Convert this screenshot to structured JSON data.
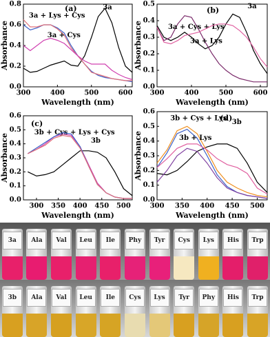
{
  "chart_data": [
    {
      "type": "line",
      "panel": "(a)",
      "x_label": "Wavelength (nm)",
      "y_label": "Absorbance",
      "x": [
        300,
        320,
        340,
        360,
        380,
        400,
        420,
        440,
        460,
        480,
        500,
        520,
        540,
        560,
        580,
        600,
        620
      ],
      "xlim": [
        300,
        620
      ],
      "xticks": [
        300,
        400,
        500,
        600
      ],
      "ylim": [
        0,
        0.8
      ],
      "yticks": [
        {
          "value": 0,
          "label": "0.0"
        },
        0.2,
        0.4,
        0.6,
        0.8
      ],
      "series": [
        {
          "name": "3a",
          "color": "#000000",
          "values": [
            0.18,
            0.14,
            0.15,
            0.18,
            0.21,
            0.23,
            0.25,
            0.21,
            0.2,
            0.3,
            0.48,
            0.68,
            0.76,
            0.62,
            0.38,
            0.2,
            0.14
          ]
        },
        {
          "color": "#3b5fc8",
          "values": [
            0.6,
            0.55,
            0.57,
            0.6,
            0.6,
            0.57,
            0.52,
            0.4,
            0.3,
            0.22,
            0.15,
            0.11,
            0.09,
            0.08,
            0.07,
            0.06,
            0.05
          ]
        },
        {
          "name": "3a + Lys + Cys",
          "color": "#e0707a",
          "values": [
            0.65,
            0.58,
            0.58,
            0.6,
            0.6,
            0.56,
            0.5,
            0.38,
            0.3,
            0.22,
            0.14,
            0.12,
            0.1,
            0.08,
            0.07,
            0.06,
            0.06
          ]
        },
        {
          "name": "3a + Cys",
          "color": "#d040b0",
          "values": [
            0.4,
            0.35,
            0.4,
            0.45,
            0.47,
            0.45,
            0.42,
            0.36,
            0.3,
            0.25,
            0.22,
            0.22,
            0.22,
            0.16,
            0.12,
            0.09,
            0.07
          ]
        }
      ]
    },
    {
      "type": "line",
      "panel": "(b)",
      "x_label": "Wavelength (nm)",
      "y_label": "Absorbance",
      "x": [
        300,
        320,
        340,
        360,
        380,
        400,
        420,
        440,
        460,
        480,
        500,
        520,
        540,
        560,
        580,
        600,
        620
      ],
      "xlim": [
        300,
        620
      ],
      "xticks": [
        300,
        400,
        500,
        600
      ],
      "ylim": [
        0,
        0.5
      ],
      "yticks": [
        {
          "value": 0,
          "label": "0.0"
        },
        0.1,
        0.2,
        0.3,
        0.4,
        0.5
      ],
      "series": [
        {
          "name": "3a",
          "color": "#000000",
          "values": [
            0.37,
            0.3,
            0.28,
            0.3,
            0.33,
            0.3,
            0.26,
            0.23,
            0.25,
            0.3,
            0.38,
            0.44,
            0.42,
            0.33,
            0.22,
            0.14,
            0.08
          ]
        },
        {
          "name": "3a + Cys + Lys",
          "color": "#7a2a6a",
          "values": [
            0.36,
            0.28,
            0.3,
            0.38,
            0.43,
            0.42,
            0.35,
            0.27,
            0.2,
            0.14,
            0.1,
            0.07,
            0.05,
            0.04,
            0.03,
            0.03,
            0.03
          ]
        },
        {
          "name": "3a + Lys",
          "color": "#e060a0",
          "values": [
            0.36,
            0.27,
            0.26,
            0.28,
            0.31,
            0.32,
            0.33,
            0.35,
            0.37,
            0.38,
            0.38,
            0.37,
            0.34,
            0.3,
            0.24,
            0.17,
            0.12
          ]
        }
      ]
    },
    {
      "type": "line",
      "panel": "(c)",
      "x_label": "Wavelength (nm)",
      "y_label": "Absorbance",
      "x": [
        280,
        300,
        320,
        340,
        360,
        380,
        400,
        420,
        440,
        460,
        480,
        500,
        520
      ],
      "xlim": [
        270,
        520
      ],
      "xticks": [
        300,
        350,
        400,
        450,
        500
      ],
      "ylim": [
        0,
        0.6
      ],
      "yticks": [
        {
          "value": 0,
          "label": "0.0"
        },
        0.1,
        0.2,
        0.3,
        0.4,
        0.5,
        0.6
      ],
      "series": [
        {
          "name": "3b",
          "color": "#000000",
          "values": [
            0.2,
            0.17,
            0.18,
            0.2,
            0.25,
            0.3,
            0.35,
            0.35,
            0.34,
            0.3,
            0.2,
            0.08,
            0.03
          ]
        },
        {
          "name": "3b + Cys + Lys + Cys",
          "color": "#d040b0",
          "values": [
            0.33,
            0.36,
            0.4,
            0.45,
            0.47,
            0.46,
            0.38,
            0.25,
            0.12,
            0.05,
            0.02,
            0.01,
            0.01
          ]
        },
        {
          "color": "#3b5fc8",
          "values": [
            0.33,
            0.37,
            0.41,
            0.45,
            0.48,
            0.47,
            0.38,
            0.24,
            0.11,
            0.05,
            0.02,
            0.01,
            0.01
          ]
        },
        {
          "color": "#e0707a",
          "values": [
            0.33,
            0.36,
            0.39,
            0.44,
            0.46,
            0.45,
            0.37,
            0.24,
            0.11,
            0.05,
            0.02,
            0.01,
            0.01
          ]
        }
      ]
    },
    {
      "type": "line",
      "panel": "(d)",
      "x_label": "Wavelength (nm)",
      "y_label": "Absorbance",
      "x": [
        300,
        320,
        340,
        360,
        380,
        400,
        420,
        440,
        460,
        480,
        500,
        520
      ],
      "xlim": [
        300,
        520
      ],
      "xticks": [
        300,
        350,
        400,
        450,
        500
      ],
      "ylim": [
        0,
        0.6
      ],
      "yticks": [
        {
          "value": 0,
          "label": "0.0"
        },
        0.1,
        0.2,
        0.3,
        0.4,
        0.5,
        0.6
      ],
      "series": [
        {
          "name": "3b",
          "color": "#000000",
          "values": [
            0.18,
            0.17,
            0.2,
            0.26,
            0.33,
            0.36,
            0.38,
            0.38,
            0.35,
            0.25,
            0.12,
            0.05
          ]
        },
        {
          "name": "3b + Cys + Lys",
          "color": "#f09020",
          "values": [
            0.25,
            0.34,
            0.47,
            0.5,
            0.45,
            0.33,
            0.2,
            0.12,
            0.08,
            0.05,
            0.03,
            0.02
          ]
        },
        {
          "color": "#3b5fc8",
          "values": [
            0.22,
            0.32,
            0.45,
            0.48,
            0.42,
            0.3,
            0.17,
            0.09,
            0.05,
            0.03,
            0.02,
            0.01
          ]
        },
        {
          "name": "3b + Lys",
          "color": "#e060a0",
          "values": [
            0.22,
            0.28,
            0.35,
            0.38,
            0.38,
            0.34,
            0.28,
            0.24,
            0.22,
            0.18,
            0.08,
            0.04
          ]
        },
        {
          "color": "#8040a0",
          "values": [
            0.12,
            0.2,
            0.3,
            0.35,
            0.33,
            0.25,
            0.15,
            0.08,
            0.05,
            0.03,
            0.02,
            0.01
          ]
        }
      ]
    }
  ],
  "photos": {
    "top": [
      "3a",
      "Ala",
      "Val",
      "Leu",
      "Ile",
      "Phy",
      "Tyr",
      "Cys",
      "Lys",
      "His",
      "Trp"
    ],
    "bottom": [
      "3b",
      "Ala",
      "Val",
      "Leu",
      "Ile",
      "Cys",
      "Lys",
      "Tyr",
      "Phy",
      "His",
      "Trp"
    ]
  }
}
